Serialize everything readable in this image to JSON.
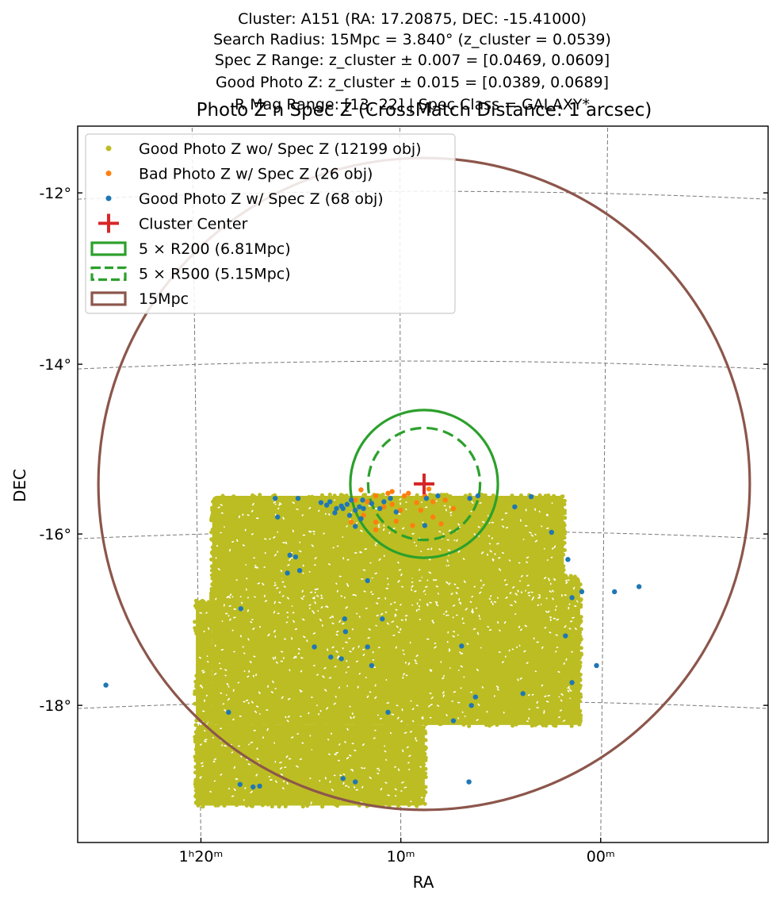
{
  "header_lines": [
    "Cluster: A151 (RA: 17.20875, DEC: -15.41000)",
    "Search Radius: 15Mpc = 3.840° (z_cluster = 0.0539)",
    "Spec Z Range: z_cluster ± 0.007 = [0.0469, 0.0609]",
    "Good Photo Z: z_cluster ± 0.015 = [0.0389, 0.0689]",
    "R Mag Range: [13, 22] | Spec Class = GALAXY*"
  ],
  "chart_data": {
    "type": "scatter",
    "title": "Photo Z n Spec Z (CrossMatch Distance: 1 arcsec)",
    "xlabel": "RA",
    "ylabel": "DEC",
    "x_ticks": [
      {
        "ra_min": 80,
        "label": "1ʰ20ᵐ"
      },
      {
        "ra_min": 70,
        "label": "10ᵐ"
      },
      {
        "ra_min": 60,
        "label": "00ᵐ"
      }
    ],
    "y_ticks": [
      {
        "dec": -12,
        "label": "-12°"
      },
      {
        "dec": -14,
        "label": "-14°"
      },
      {
        "dec": -16,
        "label": "-16°"
      },
      {
        "dec": -18,
        "label": "-18°"
      }
    ],
    "grid": true,
    "legend_position": "top-left",
    "center": {
      "ra": 17.20875,
      "dec": -15.41
    },
    "colors": {
      "good_photo_no_spec": "#bcbd22",
      "bad_photo_with_spec": "#ff7f0e",
      "good_photo_with_spec": "#1f77b4",
      "cluster_center": "#d62728",
      "r200": "#2ca02c",
      "r500": "#2ca02c",
      "search": "#8c564b"
    },
    "legend": [
      {
        "key": "good_photo_no_spec",
        "label": "Good Photo Z wo/ Spec Z (12199 obj)",
        "marker": "dot"
      },
      {
        "key": "bad_photo_with_spec",
        "label": "Bad Photo Z w/ Spec Z (26 obj)",
        "marker": "dot"
      },
      {
        "key": "good_photo_with_spec",
        "label": "Good Photo Z w/ Spec Z (68 obj)",
        "marker": "dot"
      },
      {
        "key": "cluster_center",
        "label": "Cluster Center",
        "marker": "plus"
      },
      {
        "key": "r200",
        "label": "5 × R200 (6.81Mpc)",
        "marker": "box"
      },
      {
        "key": "r500",
        "label": "5 × R500 (5.15Mpc)",
        "marker": "dashbox"
      },
      {
        "key": "search",
        "label": "15Mpc",
        "marker": "box"
      }
    ],
    "circles": [
      {
        "key": "search",
        "radius_deg": 3.84,
        "dashed": false
      },
      {
        "key": "r200",
        "radius_deg": 0.87,
        "dashed": false
      },
      {
        "key": "r500",
        "radius_deg": 0.66,
        "dashed": false
      }
    ],
    "photo_regions_deg": [
      {
        "ra": [
          15.5,
          19.8
        ],
        "dec": [
          -17.1,
          -15.55
        ]
      },
      {
        "ra": [
          15.3,
          19.8
        ],
        "dec": [
          -18.25,
          -16.5
        ]
      },
      {
        "ra": [
          17.2,
          20.0
        ],
        "dec": [
          -19.2,
          -18.25
        ]
      },
      {
        "ra": [
          19.8,
          20.0
        ],
        "dec": [
          -18.2,
          -16.8
        ]
      }
    ],
    "good_photo_with_spec_points": [
      [
        19.03,
        -15.58
      ],
      [
        18.75,
        -15.58
      ],
      [
        18.47,
        -15.63
      ],
      [
        18.4,
        -15.66
      ],
      [
        18.36,
        -15.62
      ],
      [
        18.28,
        -15.7
      ],
      [
        18.1,
        -15.6
      ],
      [
        17.85,
        -15.64
      ],
      [
        17.62,
        -15.58
      ],
      [
        17.18,
        -15.58
      ],
      [
        17.04,
        -15.55
      ],
      [
        16.65,
        -15.58
      ],
      [
        16.55,
        -15.55
      ],
      [
        18.2,
        -15.7
      ],
      [
        18.05,
        -15.72
      ],
      [
        18.0,
        -15.68
      ],
      [
        17.95,
        -15.7
      ],
      [
        18.22,
        -15.67
      ],
      [
        17.75,
        -15.7
      ],
      [
        18.3,
        -15.75
      ],
      [
        18.12,
        -15.78
      ],
      [
        17.98,
        -15.82
      ],
      [
        17.96,
        -15.6
      ],
      [
        18.15,
        -15.65
      ],
      [
        17.7,
        -15.62
      ],
      [
        17.55,
        -15.74
      ],
      [
        17.2,
        -15.9
      ],
      [
        18.05,
        -15.91
      ],
      [
        16.1,
        -15.68
      ],
      [
        19.0,
        -15.8
      ],
      [
        18.85,
        -16.25
      ],
      [
        18.78,
        -16.27
      ],
      [
        18.73,
        -16.43
      ],
      [
        18.88,
        -16.46
      ],
      [
        17.9,
        -16.55
      ],
      [
        15.65,
        -15.98
      ],
      [
        15.45,
        -16.3
      ],
      [
        15.28,
        -16.68
      ],
      [
        15.4,
        -16.75
      ],
      [
        14.88,
        -16.68
      ],
      [
        14.58,
        -16.62
      ],
      [
        18.18,
        -17.0
      ],
      [
        17.72,
        -17.0
      ],
      [
        18.17,
        -17.15
      ],
      [
        19.45,
        -16.88
      ],
      [
        17.9,
        -17.33
      ],
      [
        18.55,
        -17.33
      ],
      [
        16.75,
        -17.32
      ],
      [
        15.48,
        -17.2
      ],
      [
        15.1,
        -17.55
      ],
      [
        18.35,
        -17.45
      ],
      [
        18.22,
        -17.47
      ],
      [
        17.85,
        -17.55
      ],
      [
        21.1,
        -17.78
      ],
      [
        15.4,
        -17.75
      ],
      [
        16.0,
        -17.88
      ],
      [
        16.58,
        -17.92
      ],
      [
        16.63,
        -18.02
      ],
      [
        17.65,
        -18.1
      ],
      [
        19.6,
        -18.1
      ],
      [
        16.85,
        -18.2
      ],
      [
        18.2,
        -18.88
      ],
      [
        18.05,
        -18.92
      ],
      [
        16.66,
        -18.92
      ],
      [
        19.46,
        -18.95
      ],
      [
        19.3,
        -18.98
      ],
      [
        19.22,
        -18.97
      ],
      [
        15.9,
        -15.56
      ]
    ],
    "bad_photo_with_spec_points": [
      [
        17.98,
        -15.48
      ],
      [
        17.8,
        -15.55
      ],
      [
        17.6,
        -15.5
      ],
      [
        17.4,
        -15.52
      ],
      [
        17.2,
        -15.55
      ],
      [
        17.6,
        -15.65
      ],
      [
        17.3,
        -15.63
      ],
      [
        17.1,
        -15.62
      ],
      [
        16.95,
        -15.6
      ],
      [
        17.7,
        -15.68
      ],
      [
        17.5,
        -15.72
      ],
      [
        16.85,
        -15.7
      ],
      [
        17.95,
        -15.78
      ],
      [
        17.45,
        -15.55
      ],
      [
        17.25,
        -15.72
      ],
      [
        18.05,
        -15.6
      ],
      [
        17.1,
        -15.8
      ],
      [
        17.55,
        -15.85
      ],
      [
        17.8,
        -15.86
      ],
      [
        17.0,
        -15.88
      ],
      [
        18.1,
        -15.86
      ],
      [
        17.35,
        -15.9
      ],
      [
        17.8,
        -15.95
      ],
      [
        17.65,
        -15.52
      ],
      [
        17.9,
        -15.62
      ],
      [
        17.15,
        -15.47
      ]
    ]
  }
}
